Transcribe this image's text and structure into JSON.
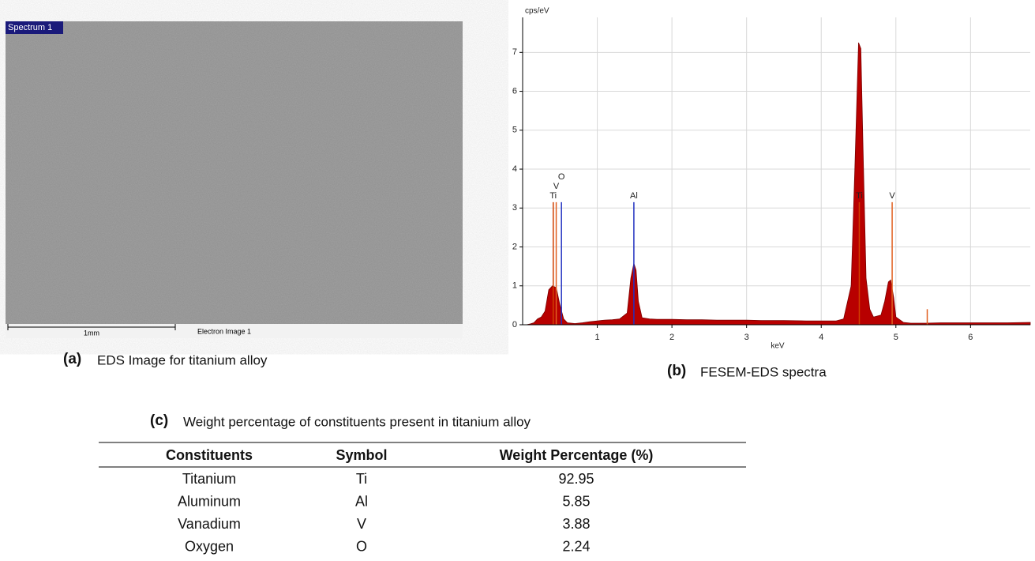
{
  "image_panel": {
    "tag": "Spectrum 1",
    "scale_bar": "1mm",
    "image_name": "Electron Image 1",
    "caption_letter": "(a)",
    "caption": "EDS Image for titanium alloy"
  },
  "chart_data": {
    "type": "area",
    "y_label": "cps/eV",
    "x_label": "keV",
    "caption_letter": "(b)",
    "caption": "FESEM-EDS spectra",
    "x": [
      0.05,
      0.1,
      0.15,
      0.2,
      0.25,
      0.3,
      0.35,
      0.4,
      0.45,
      0.5,
      0.55,
      0.6,
      0.7,
      0.8,
      0.9,
      1.0,
      1.1,
      1.2,
      1.3,
      1.4,
      1.45,
      1.49,
      1.52,
      1.55,
      1.6,
      1.7,
      1.8,
      2.0,
      2.2,
      2.4,
      2.6,
      2.8,
      3.0,
      3.2,
      3.5,
      3.8,
      4.0,
      4.2,
      4.3,
      4.4,
      4.45,
      4.5,
      4.53,
      4.56,
      4.6,
      4.65,
      4.7,
      4.8,
      4.85,
      4.9,
      4.93,
      4.97,
      5.0,
      5.1,
      5.2,
      5.4,
      5.6,
      6.0,
      6.5,
      6.8
    ],
    "series": [
      {
        "color": "#b80000",
        "values": [
          0,
          0.02,
          0.05,
          0.15,
          0.2,
          0.35,
          0.9,
          1.0,
          0.95,
          0.5,
          0.15,
          0.05,
          0.03,
          0.05,
          0.08,
          0.1,
          0.12,
          0.13,
          0.15,
          0.3,
          1.2,
          1.58,
          1.4,
          0.6,
          0.18,
          0.15,
          0.14,
          0.14,
          0.13,
          0.13,
          0.12,
          0.12,
          0.12,
          0.11,
          0.11,
          0.1,
          0.1,
          0.1,
          0.15,
          1.0,
          4.0,
          7.25,
          7.1,
          4.5,
          1.2,
          0.4,
          0.2,
          0.25,
          0.6,
          1.1,
          1.15,
          0.7,
          0.2,
          0.06,
          0.04,
          0.04,
          0.05,
          0.05,
          0.05,
          0.06
        ]
      }
    ],
    "peak_markers": [
      {
        "label": "Ti",
        "x": 0.41,
        "height": 3.15,
        "color": "#d04000"
      },
      {
        "label": "V",
        "x": 0.45,
        "height": 3.15,
        "color": "#e06020"
      },
      {
        "label": "O",
        "x": 0.52,
        "height": 3.15,
        "color": "#2030c0"
      },
      {
        "label": "Al",
        "x": 1.49,
        "height": 3.15,
        "color": "#2030c0"
      },
      {
        "label": "Ti",
        "x": 4.51,
        "height": 3.15,
        "color": "#d04000"
      },
      {
        "label": "V",
        "x": 4.95,
        "height": 3.15,
        "color": "#e06020"
      },
      {
        "x": 5.42,
        "height": 0.4,
        "color": "#e06020"
      }
    ],
    "xlim": [
      0,
      6.8
    ],
    "xticks": [
      1,
      2,
      3,
      4,
      5,
      6
    ],
    "ylim": [
      0,
      7.9
    ],
    "yticks": [
      0,
      1,
      2,
      3,
      4,
      5,
      6,
      7
    ],
    "grid": true
  },
  "table": {
    "caption_letter": "(c)",
    "caption": "Weight percentage of constituents present in titanium alloy",
    "header": [
      "Constituents",
      "Symbol",
      "Weight Percentage (%)"
    ],
    "rows": [
      [
        "Titanium",
        "Ti",
        92.95
      ],
      [
        "Aluminum",
        "Al",
        5.85
      ],
      [
        "Vanadium",
        "V",
        3.88
      ],
      [
        "Oxygen",
        "O",
        2.24
      ]
    ]
  }
}
